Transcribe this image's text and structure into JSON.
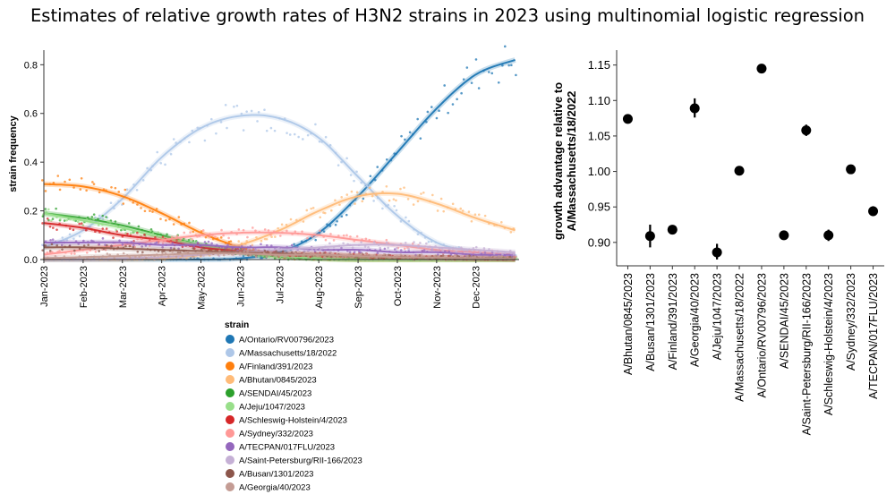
{
  "title": "Estimates of relative growth rates of H3N2 strains in 2023 using multinomial logistic regression",
  "chart_data": [
    {
      "type": "line",
      "subtype": "smoothed frequency curves with daily scatter observations",
      "title": "",
      "xlabel": "",
      "ylabel": "strain frequency",
      "x_ticks": [
        "Jan-2023",
        "Feb-2023",
        "Mar-2023",
        "Apr-2023",
        "May-2023",
        "Jun-2023",
        "Jul-2023",
        "Aug-2023",
        "Sep-2023",
        "Oct-2023",
        "Nov-2023",
        "Dec-2023"
      ],
      "x_range_months": [
        0,
        12.1
      ],
      "y_ticks": [
        0.0,
        0.2,
        0.4,
        0.6,
        0.8
      ],
      "ylim": [
        0,
        0.86
      ],
      "grid": false,
      "legend_title": "strain",
      "legend_position": "bottom",
      "series": [
        {
          "name": "A/Ontario/RV00796/2023",
          "color": "#1f77b4",
          "x": [
            0,
            1,
            2,
            3,
            4,
            5,
            6,
            7,
            8,
            9,
            10,
            11,
            12
          ],
          "values": [
            0.0,
            0.0,
            0.0,
            0.0,
            0.0,
            0.005,
            0.03,
            0.11,
            0.26,
            0.44,
            0.62,
            0.76,
            0.82
          ]
        },
        {
          "name": "A/Massachusetts/18/2022",
          "color": "#aec7e8",
          "x": [
            0,
            1,
            2,
            3,
            4,
            5,
            6,
            7,
            8,
            9,
            10,
            11,
            12
          ],
          "values": [
            0.05,
            0.12,
            0.25,
            0.42,
            0.54,
            0.59,
            0.58,
            0.5,
            0.34,
            0.18,
            0.07,
            0.03,
            0.01
          ]
        },
        {
          "name": "A/Finland/391/2023",
          "color": "#ff7f0e",
          "x": [
            0,
            1,
            2,
            3,
            4,
            5,
            6,
            7,
            8,
            9,
            10,
            11,
            12
          ],
          "values": [
            0.31,
            0.3,
            0.26,
            0.19,
            0.11,
            0.05,
            0.015,
            0.005,
            0.0,
            0.0,
            0.0,
            0.0,
            0.0
          ]
        },
        {
          "name": "A/Bhutan/0845/2023",
          "color": "#ffbb78",
          "x": [
            0,
            1,
            2,
            3,
            4,
            5,
            6,
            7,
            8,
            9,
            10,
            11,
            12
          ],
          "values": [
            0.0,
            0.0,
            0.0,
            0.005,
            0.02,
            0.06,
            0.12,
            0.2,
            0.26,
            0.27,
            0.23,
            0.17,
            0.12
          ]
        },
        {
          "name": "A/SENDAI/45/2023",
          "color": "#2ca02c",
          "x": [
            0,
            1,
            2,
            3,
            4,
            5,
            6,
            7,
            8,
            9,
            10,
            11,
            12
          ],
          "values": [
            0.19,
            0.17,
            0.14,
            0.1,
            0.06,
            0.03,
            0.012,
            0.004,
            0.0,
            0.0,
            0.0,
            0.0,
            0.0
          ]
        },
        {
          "name": "A/Jeju/1047/2023",
          "color": "#98df8a",
          "x": [
            0,
            1,
            2,
            3,
            4,
            5,
            6,
            7,
            8,
            9,
            10,
            11,
            12
          ],
          "values": [
            0.19,
            0.16,
            0.13,
            0.09,
            0.06,
            0.03,
            0.015,
            0.005,
            0.0,
            0.0,
            0.0,
            0.0,
            0.0
          ]
        },
        {
          "name": "A/Schleswig-Holstein/4/2023",
          "color": "#d62728",
          "x": [
            0,
            1,
            2,
            3,
            4,
            5,
            6,
            7,
            8,
            9,
            10,
            11,
            12
          ],
          "values": [
            0.15,
            0.13,
            0.1,
            0.08,
            0.05,
            0.035,
            0.025,
            0.02,
            0.015,
            0.01,
            0.008,
            0.005,
            0.003
          ]
        },
        {
          "name": "A/Sydney/332/2023",
          "color": "#ff9896",
          "x": [
            0,
            1,
            2,
            3,
            4,
            5,
            6,
            7,
            8,
            9,
            10,
            11,
            12
          ],
          "values": [
            0.02,
            0.04,
            0.06,
            0.08,
            0.1,
            0.11,
            0.11,
            0.1,
            0.08,
            0.06,
            0.04,
            0.03,
            0.02
          ]
        },
        {
          "name": "A/TECPAN/017FLU/2023",
          "color": "#9467bd",
          "x": [
            0,
            1,
            2,
            3,
            4,
            5,
            6,
            7,
            8,
            9,
            10,
            11,
            12
          ],
          "values": [
            0.07,
            0.07,
            0.07,
            0.06,
            0.06,
            0.05,
            0.05,
            0.04,
            0.04,
            0.03,
            0.03,
            0.02,
            0.02
          ]
        },
        {
          "name": "A/Saint-Petersburg/RII-166/2023",
          "color": "#c5b0d5",
          "x": [
            0,
            1,
            2,
            3,
            4,
            5,
            6,
            7,
            8,
            9,
            10,
            11,
            12
          ],
          "values": [
            0.0,
            0.0,
            0.005,
            0.01,
            0.02,
            0.03,
            0.04,
            0.05,
            0.06,
            0.06,
            0.05,
            0.04,
            0.03
          ]
        },
        {
          "name": "A/Busan/1301/2023",
          "color": "#8c564b",
          "x": [
            0,
            1,
            2,
            3,
            4,
            5,
            6,
            7,
            8,
            9,
            10,
            11,
            12
          ],
          "values": [
            0.05,
            0.05,
            0.045,
            0.04,
            0.035,
            0.03,
            0.025,
            0.02,
            0.015,
            0.01,
            0.008,
            0.005,
            0.003
          ]
        },
        {
          "name": "A/Georgia/40/2023",
          "color": "#c49c94",
          "x": [
            0,
            1,
            2,
            3,
            4,
            5,
            6,
            7,
            8,
            9,
            10,
            11,
            12
          ],
          "values": [
            0.005,
            0.01,
            0.015,
            0.02,
            0.025,
            0.025,
            0.02,
            0.02,
            0.015,
            0.01,
            0.008,
            0.005,
            0.003
          ]
        }
      ]
    },
    {
      "type": "scatter",
      "subtype": "point estimates with error bars",
      "title": "",
      "xlabel": "",
      "ylabel": "growth advantage relative to A/Massachusetts/18/2022",
      "y_ticks": [
        0.9,
        0.95,
        1.0,
        1.05,
        1.1,
        1.15
      ],
      "ylim": [
        0.867,
        1.171
      ],
      "grid": false,
      "categories": [
        "A/Bhutan/0845/2023",
        "A/Busan/1301/2023",
        "A/Finland/391/2023",
        "A/Georgia/40/2023",
        "A/Jeju/1047/2023",
        "A/Massachusetts/18/2022",
        "A/Ontario/RV00796/2023",
        "A/SENDAI/45/2023",
        "A/Saint-Petersburg/RII-166/2023",
        "A/Schleswig-Holstein/4/2023",
        "A/Sydney/332/2023",
        "A/TECPAN/017FLU/2023"
      ],
      "values": [
        1.074,
        0.909,
        0.918,
        1.089,
        0.886,
        1.001,
        1.145,
        0.91,
        1.058,
        0.91,
        1.003,
        0.944
      ],
      "lower": [
        1.071,
        0.893,
        0.913,
        1.076,
        0.876,
        0.999,
        1.139,
        0.904,
        1.05,
        0.902,
        1.0,
        0.937
      ],
      "upper": [
        1.077,
        0.925,
        0.923,
        1.103,
        0.898,
        1.003,
        1.151,
        0.916,
        1.066,
        0.918,
        1.006,
        0.951
      ]
    }
  ]
}
